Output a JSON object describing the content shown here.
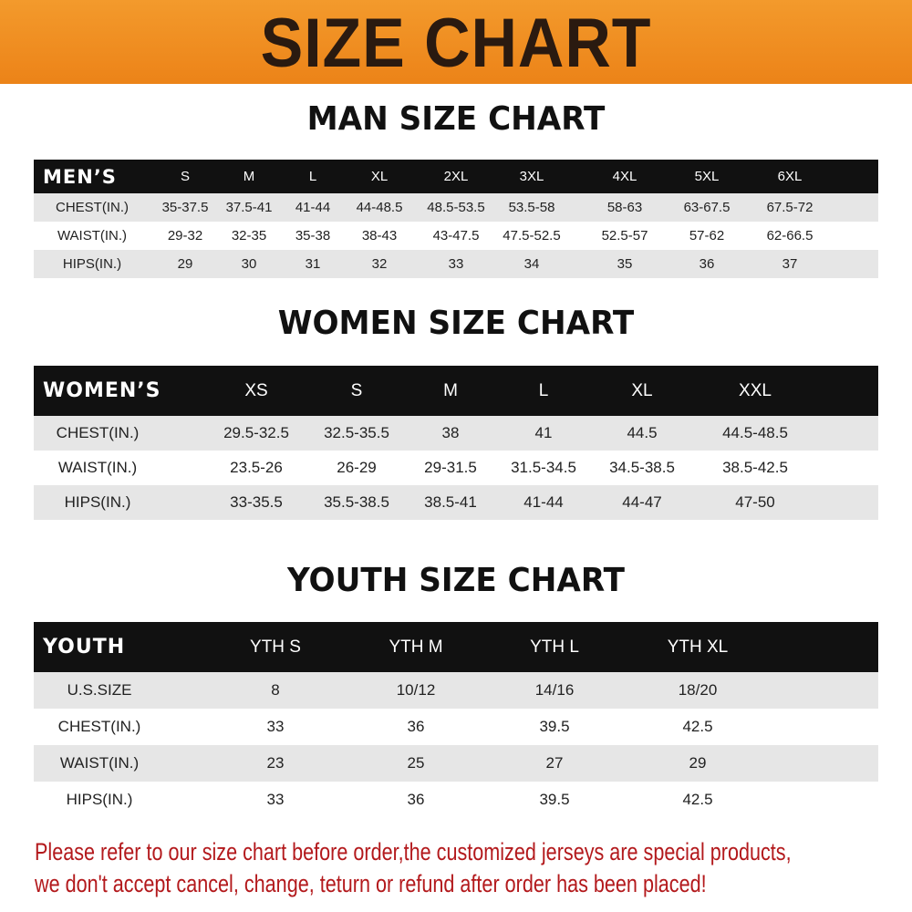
{
  "banner_title": "SIZE CHART",
  "men": {
    "title": "MAN SIZE CHART",
    "corner": "MEN’S",
    "sizes": [
      "S",
      "M",
      "L",
      "XL",
      "2XL",
      "3XL",
      "4XL",
      "5XL",
      "6XL"
    ],
    "rows": [
      {
        "label": "CHEST(IN.)",
        "values": [
          "35-37.5",
          "37.5-41",
          "41-44",
          "44-48.5",
          "48.5-53.5",
          "53.5-58",
          "58-63",
          "63-67.5",
          "67.5-72"
        ]
      },
      {
        "label": "WAIST(IN.)",
        "values": [
          "29-32",
          "32-35",
          "35-38",
          "38-43",
          "43-47.5",
          "47.5-52.5",
          "52.5-57",
          "57-62",
          "62-66.5"
        ]
      },
      {
        "label": "HIPS(IN.)",
        "values": [
          "29",
          "30",
          "31",
          "32",
          "33",
          "34",
          "35",
          "36",
          "37"
        ]
      }
    ]
  },
  "women": {
    "title": "WOMEN SIZE CHART",
    "corner": "WOMEN’S",
    "sizes": [
      "XS",
      "S",
      "M",
      "L",
      "XL",
      "XXL"
    ],
    "rows": [
      {
        "label": "CHEST(IN.)",
        "values": [
          "29.5-32.5",
          "32.5-35.5",
          "38",
          "41",
          "44.5",
          "44.5-48.5"
        ]
      },
      {
        "label": "WAIST(IN.)",
        "values": [
          "23.5-26",
          "26-29",
          "29-31.5",
          "31.5-34.5",
          "34.5-38.5",
          "38.5-42.5"
        ]
      },
      {
        "label": "HIPS(IN.)",
        "values": [
          "33-35.5",
          "35.5-38.5",
          "38.5-41",
          "41-44",
          "44-47",
          "47-50"
        ]
      }
    ]
  },
  "youth": {
    "title": "YOUTH SIZE CHART",
    "corner": "YOUTH",
    "sizes": [
      "YTH S",
      "YTH M",
      "YTH L",
      "YTH XL"
    ],
    "rows": [
      {
        "label": "U.S.SIZE",
        "values": [
          "8",
          "10/12",
          "14/16",
          "18/20"
        ]
      },
      {
        "label": "CHEST(IN.)",
        "values": [
          "33",
          "36",
          "39.5",
          "42.5"
        ]
      },
      {
        "label": "WAIST(IN.)",
        "values": [
          "23",
          "25",
          "27",
          "29"
        ]
      },
      {
        "label": "HIPS(IN.)",
        "values": [
          "33",
          "36",
          "39.5",
          "42.5"
        ]
      }
    ]
  },
  "notice": [
    "Please refer to our size chart before order,the customized jerseys are special products,",
    "we don't accept cancel, change, teturn or refund after order has been placed!"
  ],
  "colors": {
    "banner": "#ec8318",
    "header_row": "#111111",
    "stripe": "#e6e6e6",
    "notice": "#b3191c"
  }
}
